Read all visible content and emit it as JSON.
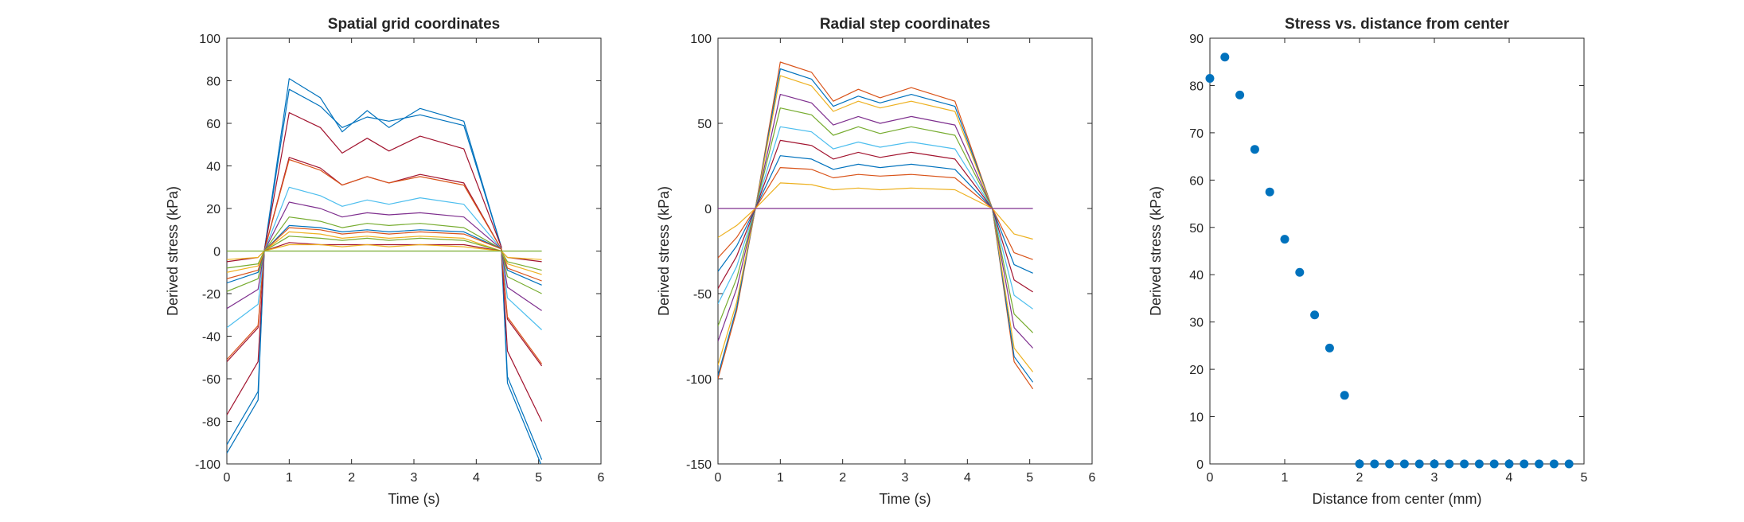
{
  "chart_data": [
    {
      "type": "line",
      "title": "Spatial grid coordinates",
      "xlabel": "Time (s)",
      "ylabel": "Derived stress (kPa)",
      "xlim": [
        0,
        6
      ],
      "ylim": [
        -100,
        100
      ],
      "xticks": [
        0,
        1,
        2,
        3,
        4,
        5,
        6
      ],
      "yticks": [
        -100,
        -80,
        -60,
        -40,
        -20,
        0,
        20,
        40,
        60,
        80,
        100
      ],
      "x": [
        0,
        0.5,
        0.6,
        1.0,
        1.5,
        1.85,
        2.25,
        2.6,
        3.1,
        3.8,
        4.4,
        4.5,
        5.05
      ],
      "series": [
        {
          "color": "#0072BD",
          "values": [
            -95,
            -70,
            0,
            81,
            72,
            56,
            66,
            58,
            67,
            61,
            2,
            -62,
            -101
          ]
        },
        {
          "color": "#0072BD",
          "values": [
            -91,
            -66,
            0,
            76,
            68,
            58,
            63,
            61,
            64,
            59,
            2,
            -59,
            -98
          ]
        },
        {
          "color": "#A2142F",
          "values": [
            -77,
            -52,
            0,
            65,
            58,
            46,
            53,
            47,
            54,
            48,
            2,
            -47,
            -80
          ]
        },
        {
          "color": "#A2142F",
          "values": [
            -52,
            -36,
            0,
            44,
            39,
            31,
            35,
            32,
            36,
            32,
            1,
            -32,
            -54
          ]
        },
        {
          "color": "#D95319",
          "values": [
            -51,
            -35,
            0,
            43,
            38,
            31,
            35,
            32,
            35,
            31,
            1,
            -31,
            -53
          ]
        },
        {
          "color": "#4DBEEE",
          "values": [
            -36,
            -25,
            0,
            30,
            26,
            21,
            24,
            22,
            25,
            22,
            1,
            -22,
            -37
          ]
        },
        {
          "color": "#7E2F8E",
          "values": [
            -27,
            -18,
            0,
            23,
            20,
            16,
            18,
            17,
            18,
            16,
            1,
            -17,
            -28
          ]
        },
        {
          "color": "#77AC30",
          "values": [
            -19,
            -13,
            0,
            16,
            14,
            11,
            13,
            12,
            13,
            11,
            1,
            -12,
            -20
          ]
        },
        {
          "color": "#0072BD",
          "values": [
            -15,
            -10,
            0,
            12,
            11,
            9,
            10,
            9,
            10,
            9,
            1,
            -9,
            -16
          ]
        },
        {
          "color": "#D95319",
          "values": [
            -13,
            -9,
            0,
            11,
            10,
            8,
            9,
            8,
            9,
            8,
            1,
            -8,
            -14
          ]
        },
        {
          "color": "#EDB120",
          "values": [
            -10,
            -7,
            0,
            9,
            8,
            6,
            7,
            6,
            7,
            6,
            0,
            -6,
            -11
          ]
        },
        {
          "color": "#77AC30",
          "values": [
            -8,
            -6,
            0,
            7,
            6,
            5,
            6,
            5,
            6,
            5,
            0,
            -5,
            -9
          ]
        },
        {
          "color": "#A2142F",
          "values": [
            -5,
            -3,
            0,
            4,
            3,
            3,
            3,
            3,
            3,
            3,
            0,
            -3,
            -5
          ]
        },
        {
          "color": "#EDB120",
          "values": [
            -4,
            -3,
            0,
            3,
            3,
            2,
            3,
            2,
            3,
            2,
            0,
            -3,
            -4
          ]
        },
        {
          "color": "#77AC30",
          "values": [
            0,
            0,
            0,
            0,
            0,
            0,
            0,
            0,
            0,
            0,
            0,
            0,
            0
          ]
        }
      ]
    },
    {
      "type": "line",
      "title": "Radial step coordinates",
      "xlabel": "Time (s)",
      "ylabel": "Derived stress (kPa)",
      "xlim": [
        0,
        6
      ],
      "ylim": [
        -150,
        100
      ],
      "xticks": [
        0,
        1,
        2,
        3,
        4,
        5,
        6
      ],
      "yticks": [
        -150,
        -100,
        -50,
        0,
        50,
        100
      ],
      "x": [
        0,
        0.3,
        0.6,
        1.0,
        1.5,
        1.85,
        2.25,
        2.6,
        3.1,
        3.8,
        4.4,
        4.75,
        5.05
      ],
      "series": [
        {
          "color": "#D95319",
          "values": [
            -100,
            -60,
            0,
            86,
            80,
            63,
            70,
            65,
            71,
            63,
            0,
            -90,
            -106
          ]
        },
        {
          "color": "#0072BD",
          "values": [
            -98,
            -58,
            0,
            82,
            76,
            60,
            66,
            62,
            67,
            60,
            0,
            -87,
            -102
          ]
        },
        {
          "color": "#EDB120",
          "values": [
            -92,
            -55,
            0,
            78,
            72,
            57,
            63,
            59,
            63,
            57,
            0,
            -82,
            -96
          ]
        },
        {
          "color": "#7E2F8E",
          "values": [
            -78,
            -47,
            0,
            67,
            62,
            49,
            54,
            50,
            54,
            49,
            0,
            -70,
            -82
          ]
        },
        {
          "color": "#77AC30",
          "values": [
            -69,
            -41,
            0,
            59,
            55,
            43,
            48,
            44,
            48,
            43,
            0,
            -62,
            -73
          ]
        },
        {
          "color": "#4DBEEE",
          "values": [
            -56,
            -34,
            0,
            48,
            45,
            35,
            39,
            36,
            39,
            35,
            0,
            -51,
            -59
          ]
        },
        {
          "color": "#A2142F",
          "values": [
            -47,
            -28,
            0,
            40,
            37,
            29,
            33,
            30,
            33,
            29,
            0,
            -42,
            -49
          ]
        },
        {
          "color": "#0072BD",
          "values": [
            -37,
            -22,
            0,
            31,
            29,
            23,
            26,
            24,
            26,
            23,
            0,
            -33,
            -38
          ]
        },
        {
          "color": "#D95319",
          "values": [
            -29,
            -17,
            0,
            24,
            23,
            18,
            20,
            19,
            20,
            18,
            0,
            -26,
            -30
          ]
        },
        {
          "color": "#EDB120",
          "values": [
            -17,
            -10,
            0,
            15,
            14,
            11,
            12,
            11,
            12,
            11,
            0,
            -15,
            -18
          ]
        },
        {
          "color": "#7E2F8E",
          "values": [
            0,
            0,
            0,
            0,
            0,
            0,
            0,
            0,
            0,
            0,
            0,
            0,
            0
          ]
        }
      ]
    },
    {
      "type": "scatter",
      "title": "Stress vs. distance from center",
      "xlabel": "Distance from center (mm)",
      "ylabel": "Derived stress (kPa)",
      "xlim": [
        0,
        5
      ],
      "ylim": [
        0,
        90
      ],
      "xticks": [
        0,
        1,
        2,
        3,
        4,
        5
      ],
      "yticks": [
        0,
        10,
        20,
        30,
        40,
        50,
        60,
        70,
        80,
        90
      ],
      "color": "#0072BD",
      "x": [
        0,
        0.2,
        0.4,
        0.6,
        0.8,
        1.0,
        1.2,
        1.4,
        1.6,
        1.8,
        2.0,
        2.2,
        2.4,
        2.6,
        2.8,
        3.0,
        3.2,
        3.4,
        3.6,
        3.8,
        4.0,
        4.2,
        4.4,
        4.6,
        4.8
      ],
      "values": [
        81.5,
        86,
        78,
        66.5,
        57.5,
        47.5,
        40.5,
        31.5,
        24.5,
        14.5,
        0,
        0,
        0,
        0,
        0,
        0,
        0,
        0,
        0,
        0,
        0,
        0,
        0,
        0,
        0
      ]
    }
  ]
}
